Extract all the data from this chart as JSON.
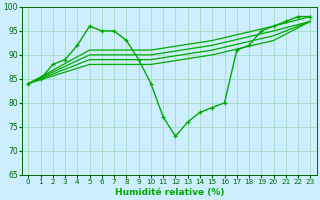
{
  "title": "",
  "xlabel": "Humidité relative (%)",
  "ylabel": "",
  "background_color": "#cceeff",
  "grid_color": "#aaddcc",
  "line_color": "#00aa00",
  "xlim": [
    -0.5,
    23.5
  ],
  "ylim": [
    65,
    100
  ],
  "yticks": [
    65,
    70,
    75,
    80,
    85,
    90,
    95,
    100
  ],
  "xticks": [
    0,
    1,
    2,
    3,
    4,
    5,
    6,
    7,
    8,
    9,
    10,
    11,
    12,
    13,
    14,
    15,
    16,
    17,
    18,
    19,
    20,
    21,
    22,
    23
  ],
  "lines": [
    {
      "x": [
        0,
        1,
        2,
        3,
        4,
        5,
        6,
        7,
        8,
        9,
        10,
        11,
        12,
        13,
        14,
        15,
        16,
        17,
        18,
        19,
        20,
        21,
        22,
        23
      ],
      "y": [
        84,
        85,
        88,
        89,
        92,
        96,
        95,
        95,
        93,
        89,
        84,
        77,
        73,
        76,
        78,
        79,
        80,
        91,
        92,
        95,
        96,
        97,
        98,
        98
      ],
      "marker": true
    },
    {
      "x": [
        0,
        5,
        10,
        15,
        20,
        23
      ],
      "y": [
        84,
        91,
        91,
        93,
        96,
        98
      ],
      "marker": false
    },
    {
      "x": [
        0,
        5,
        10,
        15,
        20,
        23
      ],
      "y": [
        84,
        90,
        90,
        92,
        95,
        97
      ],
      "marker": false
    },
    {
      "x": [
        0,
        5,
        10,
        15,
        20,
        23
      ],
      "y": [
        84,
        89,
        89,
        91,
        94,
        97
      ],
      "marker": false
    },
    {
      "x": [
        0,
        5,
        10,
        15,
        20,
        23
      ],
      "y": [
        84,
        88,
        88,
        90,
        93,
        97
      ],
      "marker": false
    }
  ],
  "figsize": [
    3.2,
    2.0
  ],
  "dpi": 100
}
